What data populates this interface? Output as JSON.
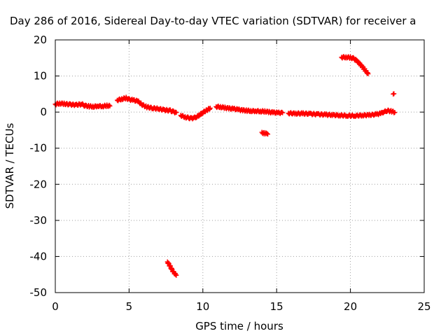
{
  "chart_data": {
    "type": "scatter",
    "title": "Day 286 of 2016, Sidereal Day-to-day VTEC variation (SDTVAR) for receiver a",
    "xlabel": "GPS time / hours",
    "ylabel": "SDTVAR / TECUs",
    "xlim": [
      0,
      25
    ],
    "ylim": [
      -50,
      20
    ],
    "xticks": [
      0,
      5,
      10,
      15,
      20,
      25
    ],
    "yticks": [
      -50,
      -40,
      -30,
      -20,
      -10,
      0,
      10,
      20
    ],
    "grid": true,
    "marker": "plus",
    "color": "#ff0000",
    "series": [
      {
        "x": [
          0.0,
          0.3,
          0.6,
          1.0,
          1.4,
          1.8,
          2.0,
          2.3,
          2.6,
          2.9,
          3.2,
          3.5,
          3.7
        ],
        "y": [
          2.2,
          2.4,
          2.3,
          2.1,
          2.0,
          2.2,
          1.8,
          1.6,
          1.5,
          1.7,
          1.6,
          1.8,
          1.7
        ]
      },
      {
        "x": [
          4.2,
          4.5,
          4.8,
          5.0,
          5.3,
          5.6,
          5.9,
          6.2,
          6.6,
          7.0,
          7.4,
          7.8,
          8.0,
          8.2
        ],
        "y": [
          3.3,
          3.6,
          3.9,
          3.5,
          3.3,
          3.0,
          2.0,
          1.4,
          1.1,
          0.9,
          0.6,
          0.4,
          0.1,
          -0.1
        ]
      },
      {
        "x": [
          8.5,
          8.8,
          9.0,
          9.2,
          9.4,
          9.6,
          9.8,
          10.0,
          10.3,
          10.5
        ],
        "y": [
          -0.9,
          -1.4,
          -1.6,
          -1.7,
          -1.6,
          -1.3,
          -0.7,
          -0.1,
          0.6,
          1.1
        ]
      },
      {
        "x": [
          10.9,
          11.2,
          11.5,
          11.8,
          12.1,
          12.4,
          12.7,
          13.0,
          13.3,
          13.6,
          13.9,
          14.2,
          14.5,
          14.8,
          15.1,
          15.4
        ],
        "y": [
          1.5,
          1.4,
          1.2,
          1.0,
          0.9,
          0.7,
          0.5,
          0.4,
          0.3,
          0.3,
          0.2,
          0.2,
          0.0,
          -0.1,
          -0.2,
          -0.2
        ]
      },
      {
        "x": [
          15.8,
          16.3,
          16.8,
          17.3,
          17.8,
          18.3,
          18.8,
          19.3,
          19.8,
          20.3,
          20.8,
          21.3,
          21.8,
          22.1,
          22.3,
          22.5,
          22.8,
          23.0
        ],
        "y": [
          -0.3,
          -0.4,
          -0.4,
          -0.5,
          -0.6,
          -0.7,
          -0.8,
          -0.9,
          -1.0,
          -1.0,
          -0.9,
          -0.8,
          -0.6,
          -0.3,
          0.1,
          0.4,
          0.2,
          -0.1
        ]
      },
      {
        "x": [
          19.4,
          19.7,
          20.0,
          20.2,
          20.4,
          20.6,
          20.8,
          21.0,
          21.2
        ],
        "y": [
          15.2,
          15.2,
          15.1,
          14.9,
          14.3,
          13.5,
          12.6,
          11.6,
          10.6
        ]
      },
      {
        "x": [
          7.6,
          7.7,
          7.8,
          7.9,
          8.0,
          8.1,
          8.2
        ],
        "y": [
          -41.5,
          -42.2,
          -42.9,
          -43.6,
          -44.3,
          -44.8,
          -45.2
        ]
      },
      {
        "x": [
          14.0,
          14.1,
          14.2,
          14.3,
          14.4
        ],
        "y": [
          -5.6,
          -5.8,
          -5.9,
          -6.0,
          -6.1
        ]
      },
      {
        "x": [
          22.9,
          22.95
        ],
        "y": [
          5.0,
          5.1
        ]
      }
    ]
  }
}
